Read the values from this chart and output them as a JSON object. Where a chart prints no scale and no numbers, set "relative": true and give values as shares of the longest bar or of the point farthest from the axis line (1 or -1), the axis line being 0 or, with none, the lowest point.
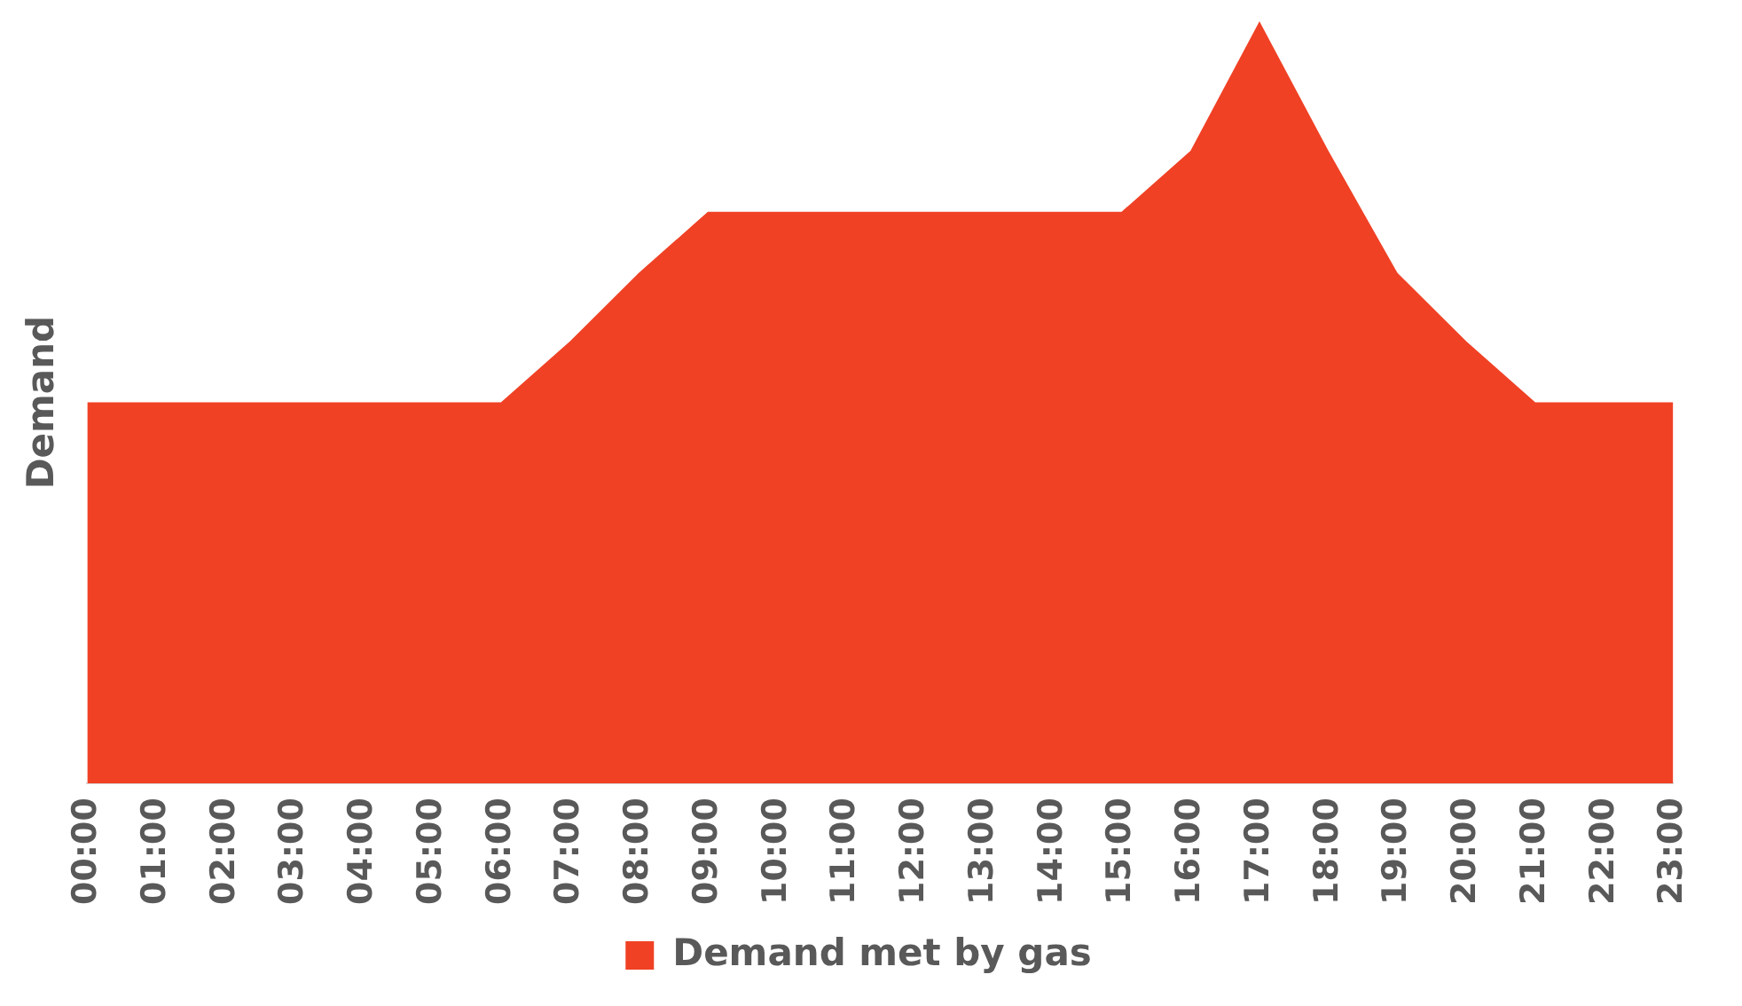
{
  "chart_data": {
    "type": "area",
    "ylabel": "Demand",
    "relative": true,
    "legend": "bottom",
    "grid": false,
    "categories": [
      "00:00",
      "01:00",
      "02:00",
      "03:00",
      "04:00",
      "05:00",
      "06:00",
      "07:00",
      "08:00",
      "09:00",
      "10:00",
      "11:00",
      "12:00",
      "13:00",
      "14:00",
      "15:00",
      "16:00",
      "17:00",
      "18:00",
      "19:00",
      "20:00",
      "21:00",
      "22:00",
      "23:00"
    ],
    "series": [
      {
        "name": "Demand met by gas",
        "color": "#f04125",
        "values": [
          0.5,
          0.5,
          0.5,
          0.5,
          0.5,
          0.5,
          0.5,
          0.58,
          0.67,
          0.75,
          0.75,
          0.75,
          0.75,
          0.75,
          0.75,
          0.75,
          0.83,
          1,
          0.83,
          0.67,
          0.58,
          0.5,
          0.5,
          0.5
        ]
      }
    ]
  }
}
